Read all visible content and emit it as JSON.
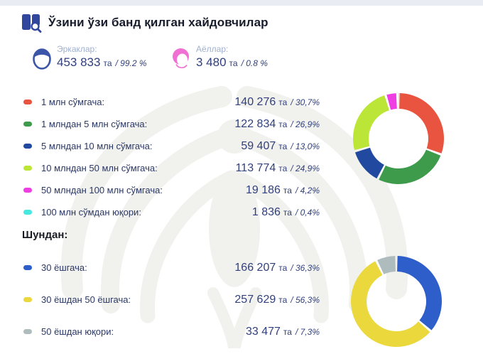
{
  "header": {
    "title": "Ўзини ўзи банд қилган хайдовчилар",
    "accent_color": "#31479e"
  },
  "genders": {
    "male": {
      "label": "Эркаклар:",
      "count": "453 833",
      "unit": "та",
      "percent": "/ 99.2 %",
      "color": "#3b56a8"
    },
    "female": {
      "label": "Аёллар:",
      "count": "3 480",
      "unit": "та",
      "percent": "/ 0.8 %",
      "color": "#ef6fd3"
    }
  },
  "income_section": {
    "rows": [
      {
        "label": "1 млн сўмгача:",
        "count": "140 276",
        "unit": "та",
        "percent": "/ 30,7%",
        "color": "#e95440"
      },
      {
        "label": "1 млндан 5 млн сўмгача:",
        "count": "122 834",
        "unit": "та",
        "percent": "/ 26,9%",
        "color": "#3f9b4c"
      },
      {
        "label": "5 млндан 10 млн сўмгача:",
        "count": "59 407",
        "unit": "та",
        "percent": "/ 13,0%",
        "color": "#21499f"
      },
      {
        "label": "10 млндан 50 млн сўмгача:",
        "count": "113 774",
        "unit": "та",
        "percent": "/ 24,9%",
        "color": "#bce637"
      },
      {
        "label": "50 млндан 100 млн сўмгача:",
        "count": "19 186",
        "unit": "та",
        "percent": "/ 4,2%",
        "color": "#ef3fe3"
      },
      {
        "label": "100 млн сўмдан юқори:",
        "count": "1 836",
        "unit": "та",
        "percent": "/ 0,4%",
        "color": "#46e8df"
      }
    ]
  },
  "age_section": {
    "heading": "Шундан:",
    "rows": [
      {
        "label": "30 ёшгача:",
        "count": "166 207",
        "unit": "та",
        "percent": "/ 36,3%",
        "color": "#2d5ec9"
      },
      {
        "label": "30 ёшдан 50 ёшгача:",
        "count": "257 629",
        "unit": "та",
        "percent": "/ 56,3%",
        "color": "#ead83c"
      },
      {
        "label": "50 ёшдан юқори:",
        "count": "33 477",
        "unit": "та",
        "percent": "/ 7,3%",
        "color": "#aebcbd"
      }
    ]
  },
  "chart_data": [
    {
      "type": "pie",
      "donut": true,
      "labels": [
        "1 млн сўмгача",
        "1 млндан 5 млн сўмгача",
        "5 млндан 10 млн сўмгача",
        "10 млндан 50 млн сўмгача",
        "50 млндан 100 млн сўмгача",
        "100 млн сўмдан юқори"
      ],
      "values": [
        30.7,
        26.9,
        13.0,
        24.9,
        4.2,
        0.4
      ],
      "counts": [
        140276,
        122834,
        59407,
        113774,
        19186,
        1836
      ],
      "colors": [
        "#e95440",
        "#3f9b4c",
        "#21499f",
        "#bce637",
        "#ef3fe3",
        "#46e8df"
      ],
      "legend_position": "left"
    },
    {
      "type": "pie",
      "donut": true,
      "labels": [
        "30 ёшгача",
        "30 ёшдан 50 ёшгача",
        "50 ёшдан юқори"
      ],
      "values": [
        36.3,
        56.3,
        7.3
      ],
      "counts": [
        166207,
        257629,
        33477
      ],
      "colors": [
        "#2d5ec9",
        "#ead83c",
        "#aebcbd"
      ],
      "legend_position": "left"
    }
  ]
}
